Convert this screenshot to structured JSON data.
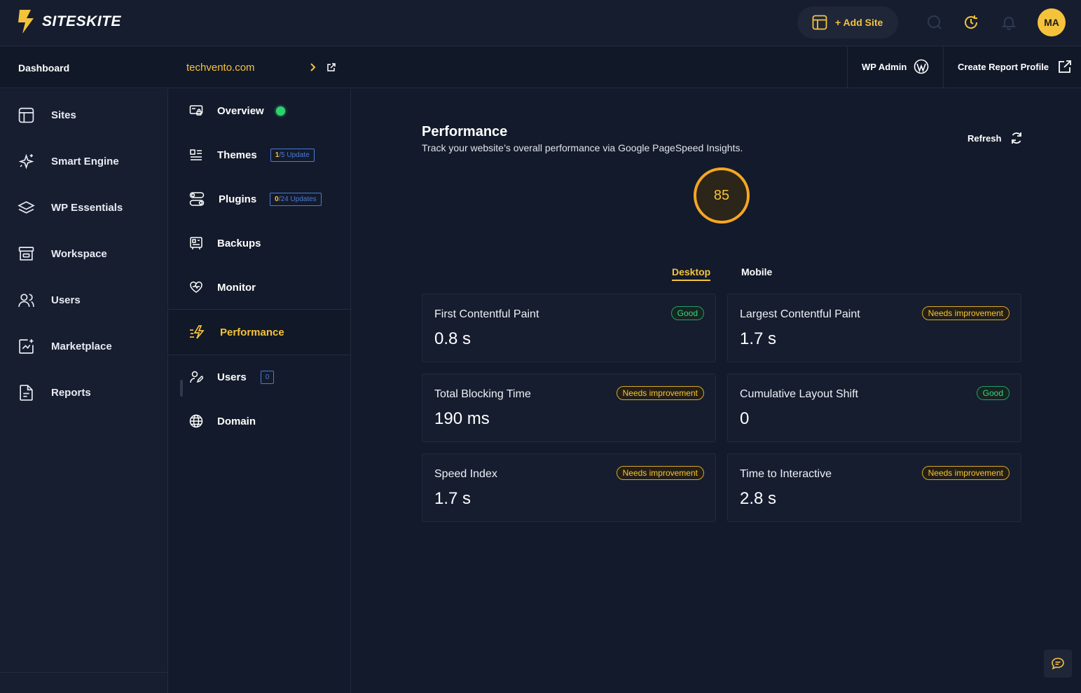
{
  "brand": {
    "name": "SITESKITE"
  },
  "topbar": {
    "add_site_label": "+ Add Site",
    "avatar_initials": "MA"
  },
  "subbar": {
    "dashboard_label": "Dashboard",
    "site_name": "techvento.com",
    "wp_admin_label": "WP Admin",
    "create_report_label": "Create Report Profile"
  },
  "sidebar": {
    "items": [
      {
        "label": "Sites",
        "icon": "layout-icon"
      },
      {
        "label": "Smart Engine",
        "icon": "sparkle-icon"
      },
      {
        "label": "WP Essentials",
        "icon": "layers-icon"
      },
      {
        "label": "Workspace",
        "icon": "archive-icon"
      },
      {
        "label": "Users",
        "icon": "users-icon"
      },
      {
        "label": "Marketplace",
        "icon": "marketplace-icon"
      },
      {
        "label": "Reports",
        "icon": "report-icon"
      }
    ]
  },
  "subnav": {
    "overview": "Overview",
    "themes": "Themes",
    "themes_badge_count": "1",
    "themes_badge_rest": "/5 Update",
    "plugins": "Plugins",
    "plugins_badge_count": "0",
    "plugins_badge_rest": "/24 Updates",
    "backups": "Backups",
    "monitor": "Monitor",
    "performance": "Performance",
    "users": "Users",
    "users_count": "0",
    "domain": "Domain"
  },
  "main": {
    "title": "Performance",
    "subtitle": "Track your website’s overall performance via Google PageSpeed Insights.",
    "refresh_label": "Refresh",
    "score": "85",
    "tabs": [
      {
        "label": "Desktop",
        "active": true
      },
      {
        "label": "Mobile",
        "active": false
      }
    ],
    "metrics": [
      {
        "name": "First Contentful Paint",
        "value": "0.8 s",
        "status": "Good"
      },
      {
        "name": "Largest Contentful Paint",
        "value": "1.7 s",
        "status": "Needs improvement"
      },
      {
        "name": "Total Blocking Time",
        "value": "190 ms",
        "status": "Needs improvement"
      },
      {
        "name": "Cumulative Layout Shift",
        "value": "0",
        "status": "Good"
      },
      {
        "name": "Speed Index",
        "value": "1.7 s",
        "status": "Needs improvement"
      },
      {
        "name": "Time to Interactive",
        "value": "2.8 s",
        "status": "Needs improvement"
      }
    ]
  },
  "colors": {
    "accent": "#f5c33b",
    "good": "#3ecf8e",
    "background": "#131a2b"
  }
}
